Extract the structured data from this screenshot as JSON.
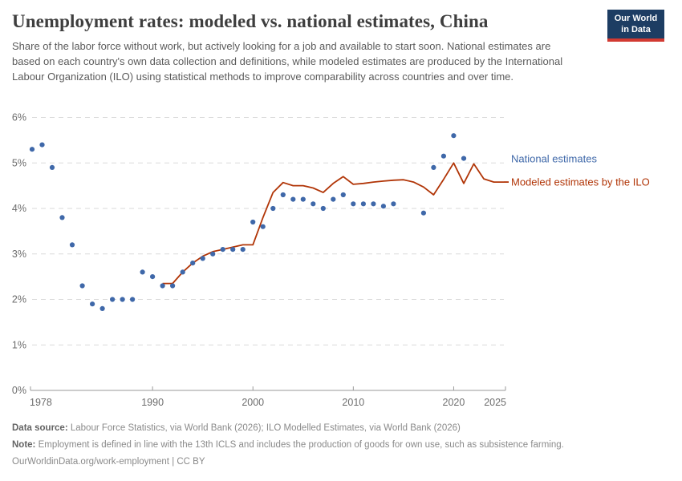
{
  "header": {
    "title": "Unemployment rates: modeled vs. national estimates, China",
    "subtitle": "Share of the labor force without work, but actively looking for a job and available to start soon. National estimates are based on each country's own data collection and definitions, while modeled estimates are produced by the International Labour Organization (ILO) using statistical methods to improve comparability across countries and over time.",
    "logo": {
      "line1": "Our World",
      "line2": "in Data",
      "bg_color": "#1d3d63",
      "stripe_color": "#d23a32"
    }
  },
  "chart_data": {
    "type": "line",
    "title": "Unemployment rates: modeled vs. national estimates, China",
    "xlabel": "",
    "ylabel": "",
    "xlim": [
      1978,
      2025
    ],
    "ylim": [
      0,
      6
    ],
    "x_ticks": [
      1978,
      1990,
      2000,
      2010,
      2020,
      2025
    ],
    "y_ticks": [
      0,
      1,
      2,
      3,
      4,
      5,
      6
    ],
    "y_tick_suffix": "%",
    "grid": "horizontal-dashed",
    "legend_position": "right-of-line-end",
    "series": [
      {
        "name": "National estimates",
        "style": "scatter",
        "color": "#3f68a9",
        "points": [
          [
            1978,
            5.3
          ],
          [
            1979,
            5.4
          ],
          [
            1980,
            4.9
          ],
          [
            1981,
            3.8
          ],
          [
            1982,
            3.2
          ],
          [
            1983,
            2.3
          ],
          [
            1984,
            1.9
          ],
          [
            1985,
            1.8
          ],
          [
            1986,
            2.0
          ],
          [
            1987,
            2.0
          ],
          [
            1988,
            2.0
          ],
          [
            1989,
            2.6
          ],
          [
            1990,
            2.5
          ],
          [
            1991,
            2.3
          ],
          [
            1992,
            2.3
          ],
          [
            1993,
            2.6
          ],
          [
            1994,
            2.8
          ],
          [
            1995,
            2.9
          ],
          [
            1996,
            3.0
          ],
          [
            1997,
            3.1
          ],
          [
            1998,
            3.1
          ],
          [
            1999,
            3.1
          ],
          [
            2000,
            3.7
          ],
          [
            2001,
            3.6
          ],
          [
            2002,
            4.0
          ],
          [
            2003,
            4.3
          ],
          [
            2004,
            4.2
          ],
          [
            2005,
            4.2
          ],
          [
            2006,
            4.1
          ],
          [
            2007,
            4.0
          ],
          [
            2008,
            4.2
          ],
          [
            2009,
            4.3
          ],
          [
            2010,
            4.1
          ],
          [
            2011,
            4.1
          ],
          [
            2012,
            4.1
          ],
          [
            2013,
            4.05
          ],
          [
            2014,
            4.1
          ],
          [
            2017,
            3.9
          ],
          [
            2018,
            4.9
          ],
          [
            2019,
            5.15
          ],
          [
            2020,
            5.6
          ],
          [
            2021,
            5.1
          ]
        ]
      },
      {
        "name": "Modeled estimates by the ILO",
        "style": "line",
        "color": "#b13507",
        "points": [
          [
            1991,
            2.35
          ],
          [
            1992,
            2.35
          ],
          [
            1993,
            2.6
          ],
          [
            1994,
            2.8
          ],
          [
            1995,
            2.95
          ],
          [
            1996,
            3.05
          ],
          [
            1997,
            3.1
          ],
          [
            1998,
            3.15
          ],
          [
            1999,
            3.2
          ],
          [
            2000,
            3.2
          ],
          [
            2001,
            3.8
          ],
          [
            2002,
            4.35
          ],
          [
            2003,
            4.57
          ],
          [
            2004,
            4.5
          ],
          [
            2005,
            4.5
          ],
          [
            2006,
            4.45
          ],
          [
            2007,
            4.35
          ],
          [
            2008,
            4.55
          ],
          [
            2009,
            4.7
          ],
          [
            2010,
            4.53
          ],
          [
            2011,
            4.55
          ],
          [
            2012,
            4.58
          ],
          [
            2013,
            4.6
          ],
          [
            2014,
            4.62
          ],
          [
            2015,
            4.63
          ],
          [
            2016,
            4.58
          ],
          [
            2017,
            4.47
          ],
          [
            2018,
            4.3
          ],
          [
            2019,
            4.64
          ],
          [
            2020,
            5.0
          ],
          [
            2021,
            4.55
          ],
          [
            2022,
            4.98
          ],
          [
            2023,
            4.65
          ],
          [
            2024,
            4.58
          ],
          [
            2025,
            4.58
          ]
        ]
      }
    ]
  },
  "footer": {
    "data_source_label": "Data source:",
    "data_source_text": " Labour Force Statistics, via World Bank (2026); ILO Modelled Estimates, via World Bank (2026)",
    "note_label": "Note:",
    "note_text": " Employment is defined in line with the 13th ICLS and includes the production of goods for own use, such as subsistence farming.",
    "cc_line": "OurWorldinData.org/work-employment | CC BY"
  }
}
